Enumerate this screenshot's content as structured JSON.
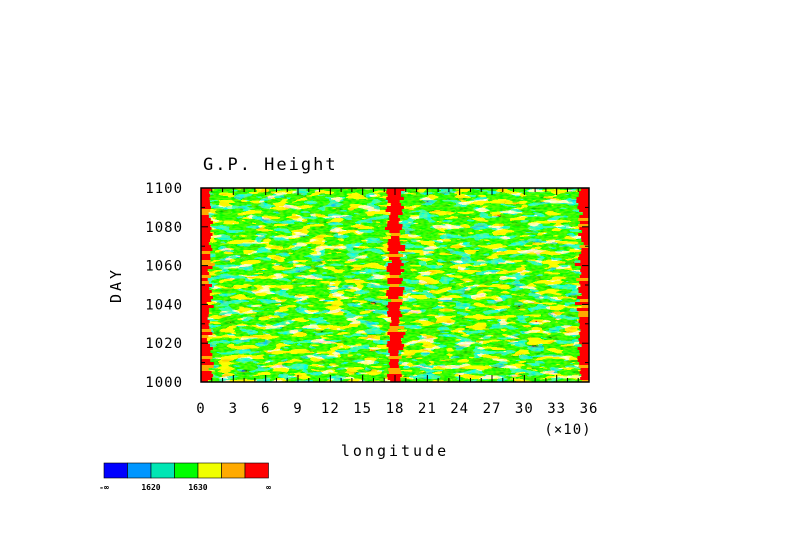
{
  "chart_data": {
    "type": "heatmap",
    "title": "G.P. Height",
    "xlabel": "longitude",
    "ylabel": "DAY",
    "x_multiplier_label": "(×10)",
    "xlim": [
      0,
      36
    ],
    "ylim": [
      1000,
      1100
    ],
    "x_ticks": [
      "0",
      "3",
      "6",
      "9",
      "12",
      "15",
      "18",
      "21",
      "24",
      "27",
      "30",
      "33",
      "36"
    ],
    "y_ticks": [
      "1000",
      "1020",
      "1040",
      "1060",
      "1080",
      "1100"
    ],
    "colorbar": {
      "colors": [
        "#0000ff",
        "#0096ff",
        "#00e6b4",
        "#00ff00",
        "#f0ff00",
        "#ffaa00",
        "#ff0000"
      ],
      "labels": [
        "-∞",
        "1620",
        "1630",
        "∞"
      ]
    },
    "features": [
      {
        "description": "persistent high-value band",
        "x": 0.3,
        "days": [
          1000,
          1100
        ]
      },
      {
        "description": "persistent high-value band",
        "x": 18,
        "days": [
          1000,
          1100
        ]
      },
      {
        "description": "persistent high-value band",
        "x": 35.7,
        "days": [
          1000,
          1100
        ]
      }
    ]
  }
}
